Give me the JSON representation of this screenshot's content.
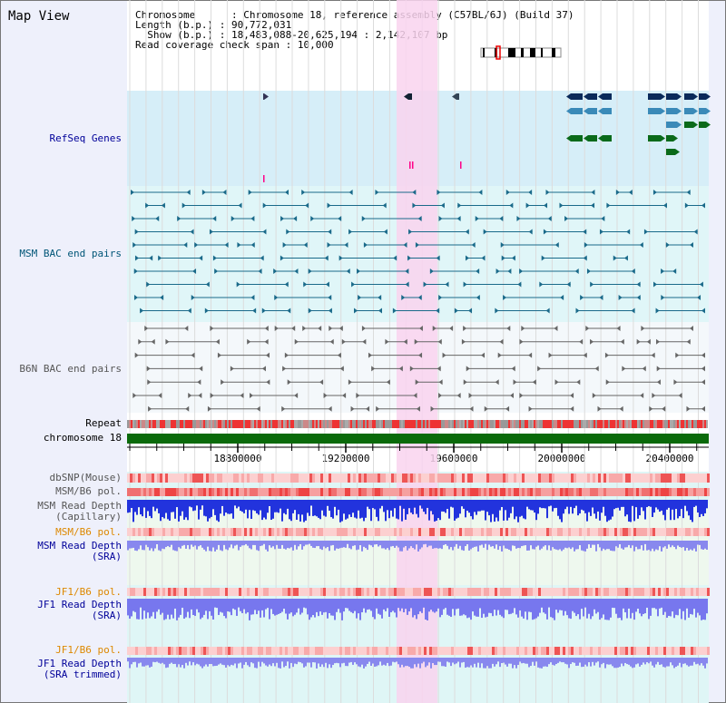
{
  "view_title": "Map View",
  "info": {
    "chromosome_label": "Chromosome",
    "chromosome_value": "Chromosome 18, reference assembly (C57BL/6J) (Build 37)",
    "length_label": "Length (b.p.)",
    "length_value": "90,772,031",
    "show_label": "Show (b.p.)",
    "show_value": "18,483,088-20,625,194 : 2,142,107 bp",
    "span_label": "Read coverage check span",
    "span_value": "10,000"
  },
  "tracks": {
    "refseq": "RefSeq Genes",
    "msm_bac": "MSM BAC end pairs",
    "b6n_bac": "B6N BAC end pairs",
    "repeat": "Repeat",
    "chromosome": "chromosome 18",
    "dbsnp": "dbSNP(Mouse)",
    "msm_b6_pol_1": "MSM/B6 pol.",
    "msm_read_depth_cap_1": "MSM Read Depth",
    "msm_read_depth_cap_2": "(Capillary)",
    "msm_b6_pol_2": "MSM/B6 pol.",
    "msm_read_depth_sra_1": "MSM Read Depth",
    "msm_read_depth_sra_2": "(SRA)",
    "jf1_b6_pol_1": "JF1/B6 pol.",
    "jf1_read_depth_sra_1": "JF1 Read Depth",
    "jf1_read_depth_sra_2": "(SRA)",
    "jf1_b6_pol_2": "JF1/B6 pol.",
    "jf1_read_depth_trim_1": "JF1 Read Depth",
    "jf1_read_depth_trim_2": "(SRA trimmed)"
  },
  "axis": {
    "ticks": [
      "18800000",
      "19200000",
      "19600000",
      "20000000",
      "20400000"
    ]
  },
  "colors": {
    "label_blue": "#000099",
    "label_teal": "#005577",
    "label_gray": "#555555",
    "label_orange": "#dd8800",
    "highlight": "#f9d4ee",
    "refseq_bg": "#d6eef8",
    "bac_bg": "#e0f6f8"
  }
}
